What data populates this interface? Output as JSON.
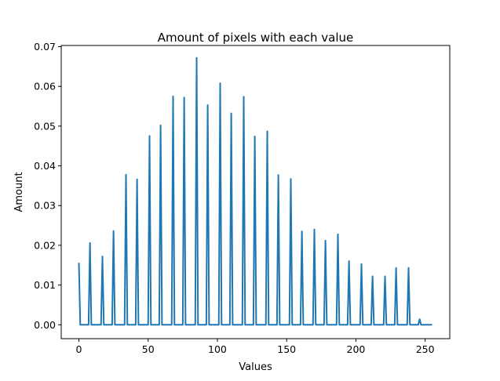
{
  "chart_data": {
    "type": "line",
    "title": "Amount of pixels with each value",
    "xlabel": "Values",
    "ylabel": "Amount",
    "xlim": [
      -12.75,
      267.75
    ],
    "ylim": [
      -0.0035,
      0.0703
    ],
    "xticks": [
      0,
      50,
      100,
      150,
      200,
      250
    ],
    "xtick_labels": [
      "0",
      "50",
      "100",
      "150",
      "200",
      "250"
    ],
    "yticks": [
      0.0,
      0.01,
      0.02,
      0.03,
      0.04,
      0.05,
      0.06,
      0.07
    ],
    "ytick_labels": [
      "0.00",
      "0.01",
      "0.02",
      "0.03",
      "0.04",
      "0.05",
      "0.06",
      "0.07"
    ],
    "grid": false,
    "legend": "none",
    "color": "#1f77b4",
    "series": [
      {
        "x": [
          0,
          8,
          17,
          25,
          34,
          42,
          51,
          59,
          68,
          76,
          85,
          93,
          102,
          110,
          119,
          127,
          136,
          144,
          153,
          161,
          170,
          178,
          187,
          195,
          204,
          212,
          221,
          229,
          238,
          246,
          255
        ],
        "y": [
          0.0156,
          0.0206,
          0.0172,
          0.0236,
          0.0378,
          0.0366,
          0.0475,
          0.0502,
          0.0575,
          0.0572,
          0.0672,
          0.0553,
          0.0608,
          0.0532,
          0.0574,
          0.0474,
          0.0487,
          0.0377,
          0.0367,
          0.0235,
          0.024,
          0.0212,
          0.0228,
          0.016,
          0.0153,
          0.0122,
          0.0122,
          0.0143,
          0.0143,
          0.0014,
          0.0
        ]
      }
    ]
  }
}
